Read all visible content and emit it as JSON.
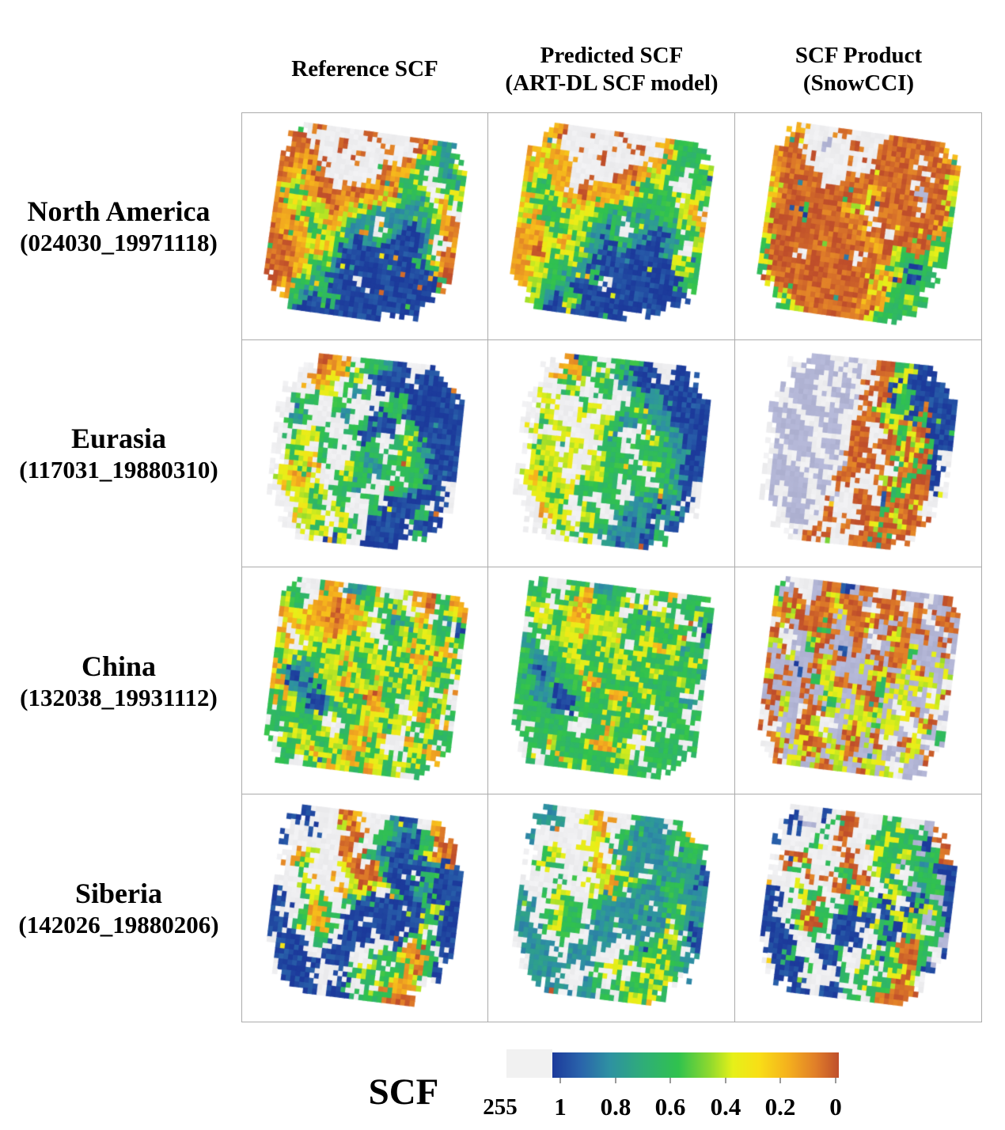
{
  "columns": [
    {
      "line1": "Reference SCF",
      "line2": ""
    },
    {
      "line1": "Predicted SCF",
      "line2": "(ART-DL SCF model)"
    },
    {
      "line1": "SCF Product",
      "line2": "(SnowCCI)"
    }
  ],
  "rows": [
    {
      "region": "North America",
      "scene": "(024030_19971118)"
    },
    {
      "region": "Eurasia",
      "scene": "(117031_19880310)"
    },
    {
      "region": "China",
      "scene": "(132038_19931112)"
    },
    {
      "region": "Siberia",
      "scene": "(142026_19880206)"
    }
  ],
  "legend": {
    "title": "SCF",
    "nodata_label": "255",
    "nodata_color": "#f1f1f1",
    "flag_color": "#b2b5d5",
    "tick_labels": [
      "1",
      "0.8",
      "0.6",
      "0.4",
      "0.2",
      "0"
    ],
    "colormap_stops": [
      [
        0.0,
        "#1c3a9b"
      ],
      [
        0.1,
        "#2a64ab"
      ],
      [
        0.2,
        "#2e91a2"
      ],
      [
        0.32,
        "#2fae77"
      ],
      [
        0.44,
        "#30c24e"
      ],
      [
        0.55,
        "#8fd92e"
      ],
      [
        0.63,
        "#e6f019"
      ],
      [
        0.72,
        "#f8df16"
      ],
      [
        0.82,
        "#f5b21d"
      ],
      [
        0.92,
        "#e07e29"
      ],
      [
        1.0,
        "#bf4e2b"
      ]
    ]
  },
  "chart_data": {
    "type": "heatmap",
    "title": "Snow cover fraction (SCF) map comparison: reference vs ART-DL model prediction vs SnowCCI product for four Landsat scenes",
    "legend_title": "SCF",
    "value_range": [
      0,
      1
    ],
    "value_codes": {
      "B": 0.97,
      "T": 0.78,
      "G": 0.6,
      "Y": 0.38,
      "O": 0.16,
      "R": 0.04,
      "W": "no-data (255, light gray)",
      "L": "flagged (lavender)",
      ".": "outside swath"
    },
    "panels": [
      {
        "region": "North America",
        "column": "Reference SCF",
        "rotation_deg": 8,
        "grid": [
          "..WRWWWWWRWWWWROGT..",
          ".RRWWWRWWWWRWWOYGTG.",
          ".RORWWWWRWWWWROGTTGY",
          "RROORWWWWWWROOYGWGTG",
          "ROORRWWWWWRROGGYWWGY",
          "ROYORRWRROOORYGGYWYG",
          "OYGOORROOROYYGTTGYOW",
          "OGYOYOROYYGTTTTTGYOR",
          "ROYGYYOYGTTWTTBTTGOR",
          "OOROGYOYTTGWGTBBTGWO",
          "ROOOYGYGTBTGTBBBTGWR",
          "RROOYOYGBBBBBBBBGYOR",
          "RRROGYGYBBBBBBBBBGOR",
          "RROOYGGTBBBBBBBBBBGR",
          "RRROYGTBBBWBBBBBBBB.",
          ".ROGGTGBBBBBBBBBBB..",
          "..OGTBBGBBBBBBBBB...",
          "...GBBBBBBBBB......."
        ]
      },
      {
        "region": "North America",
        "column": "Predicted SCF (ART-DL SCF model)",
        "rotation_deg": 8,
        "grid": [
          "..ORWWWWWRWWWWOOGG..",
          ".OOWWWRWWWWRWWOYGGG.",
          ".OYOWWWWRWWWWOOGGGGY",
          "OOYOOWWWWWWROYYGGWGG",
          "OYOOOWWWWWROOGYGWWGY",
          "OYGOOWWROOOOYYGGYWYG",
          "YGGYOOROOOYYGGGGGYOW",
          "OGYGYOOYGGGTTTGGGYYO",
          "YOGYGYYYGTTWGTTTTGGO",
          "YOOGGYYGTTGWGTBBTGWY",
          "OOOYGGYGTBTGTBBBTGWG",
          "OOOYYOYGTBBTBBBBGYYG",
          "OORYGYGYTBBBBBBBBGYG",
          "OOYOGGGTBBBBBBBBBBGG",
          "OOYYGGTBBGWBBBBBBBB.",
          ".OYGGTGBBBBBBBBBBB..",
          "..YGTBGGBBBBBBBBB...",
          "...GBBYBBBBBB......."
        ]
      },
      {
        "region": "North America",
        "column": "SCF Product (SnowCCI)",
        "rotation_deg": 8,
        "grid": [
          "..OWWWORWWWWRRRRRO..",
          ".ORWWLWWRWWRRRRRRRO.",
          ".RRWWWWWRWWRRRRWRRRO",
          "ORRRWWWWWWRRRRRRWRRY",
          "ORRRRWWWRRRRRRRWRRRY",
          "ORRRRRWRRRRORRRRLRRY",
          "YRRRRRRRROYRRRRRWRRG",
          "ORRRRRRROYRWRRRRRRRY",
          "YRRBGRRRRORWRRRRRROG",
          "YRRRRRRRRRORRWRRRRGG",
          "ORRRRRRRRRRORRRRORYG",
          "YRRRRRRRRRRRORYGGGYG",
          "GRRRWRRRRRWRRYGGBGG.",
          "YRRRRRRRRRRRYOYBBGG.",
          "GRRRRRRRRRRROYRGGG..",
          ".YRRRRRRRRRRYOGGYG..",
          "..GYRRRRRRROROGGG...",
          "...GYRRRRRRRYGG....."
        ]
      },
      {
        "region": "Eurasia",
        "column": "Reference SCF",
        "rotation_deg": 6,
        "grid": [
          "....ROOWWGGTBBWWB...",
          "..WWROOGYGBBBBWBBB..",
          "..WOOYWGGWBBBBBBBBB.",
          ".WWWGYWWTGWWGGBBBBBB",
          ".WGGWWGGWWWGGTBBBBBB",
          "WWGWWWGTWWBBGGBBBBBB",
          ".WTGWWWWGGBBBWGBBBBB",
          "WGWWYGWWGBBWWGYGBBBB",
          ".WYYWGGWWGGWGGGGTBBB",
          "WYGYWGWWGTTGWGYGGBBB",
          ".WYYOGWWYGTTGWGGTBBB",
          "WYOGYWWGYGGWGGWGGBBW",
          ".YOOYYWGGTGWWGGTBBBW",
          "WWYYGYWGWWGGWBBBBWBW",
          ".WWYYGWYGWWGBBBBGBB.",
          "..WOYYWYYGWBBBBWBB..",
          "..WWYGYWGGWBBBBBG...",
          "....WYWBYWBBBBB....."
        ]
      },
      {
        "region": "Eurasia",
        "column": "Predicted SCF (ART-DL SCF model)",
        "rotation_deg": 6,
        "grid": [
          "....OGGWWGGGBBWWB...",
          "..WWOOGGYGTBBBWBBB..",
          "..WOGYWGGWTTBBBBBBB.",
          ".WWWGYWWGGWWGTTBBBBB",
          ".WYYWWGYWWWGGTTTBBBB",
          "WWYWWWYYWWGTGGTTBBBB",
          ".WGYWWWWYYGTTWGTTBBB",
          "WYWWYYWWYGTWWGYGTTBB",
          ".WYYWYYWWGGWGGGGTTBB",
          "WYGYWYWWYGGGWGYGGTBB",
          ".WYYYYWWYGGGGWGGTTBB",
          "WYYGYWWYYGGWGGWGGTBW",
          ".YOYYYWGGGGWWGGTTTBW",
          "WWYYGYWGWWGGWTTBTWBW",
          ".WWYYGWYGWWGTTTBGTB.",
          "..WOYYWYYGWTBTBWTB..",
          "..WWYGYWGGWTTTTBG...",
          "....WYWGYWTTBTB....."
        ]
      },
      {
        "region": "Eurasia",
        "column": "SCF Product (SnowCCI)",
        "rotation_deg": 6,
        "grid": [
          "....LLWWLWWRRGYBB...",
          "..WLLLLWWLWRRYBBBB..",
          "..LLLWWLLWRRBYGBBBB.",
          ".LLLLWLLWWRWRBGBBBBB",
          ".WLLLWWLLWRRYGYBRBBB",
          "LLWWLLLLWWRRGYRBGBBB",
          ".LLLWWLLWRRWRYGYRBBB",
          "WLLLLWWLWRRWWRGRYGBB",
          ".WLLLWLLWRRWRRYRGRBW",
          "WLWLLWWLWRRRWRGYRGBW",
          ".LLWWLLWLRRWRWRRGRB.",
          "WLLLWWLWRRWWRYRGRRBW",
          ".WLLLWLWRWRWWRGYRRW.",
          "WLWLLWWLWWRRWBRRYRW.",
          ".LLWLLWRWWWRRGYRRW..",
          "..WLLWWRWRWRYRRYRR..",
          "..WWLWRWWRWRRGRRW...",
          "....WRWRWWRRRRR....."
        ]
      },
      {
        "region": "China",
        "column": "Reference SCF",
        "rotation_deg": 7,
        "grid": [
          ".GWWGOWTTGOWWYORWGO.",
          "GYGWOOROGGYGYWWOGGYO",
          "YGWOOROOYGWGTGYOWGTG",
          "OYYOORROOYYGGTGYGGWB",
          "WOYOOOROYYWGGYGGYGYG",
          "OWYYYOYYGYGWGYOYGYOW",
          "YOWYGYGYYGYGYGGOYGYG",
          "GYYGGYYOGGYYGGYYOGGY",
          "OGTTGYYGYGGYYGYGYYGW",
          "YTBTGGYOOYYOGYGYGWYO",
          "OYTTBGYYGGROGGYYGGYW",
          "GOYTBBTGYGYOYGWYOGWG",
          "GGYGTBGYGGYYGYYWGYOW",
          "WGGGGYWWGYOYGYYGWYGG",
          "GWGYGGYWGOYGOWWOYGWG",
          ".GYGYYGYYOOGYWGGYOO.",
          ".WGGYOYGYOGYYGWYGG..",
          "..GWYGYOYYGOYGYWG..."
        ]
      },
      {
        "region": "China",
        "column": "Predicted SCF (ART-DL SCF model)",
        "rotation_deg": 7,
        "grid": [
          ".GWWGGWTTGGWWYGOWGG.",
          "GGGWGYOGGGYGYWWGGGYG",
          "YGWGYOYGYGWGTGYGWGTG",
          "GYYGYOOYYYYGGTGGGGWB",
          "WGYGYYOYYYWGGYGGYGTG",
          "GWGYYYYGGYGWGYOYGTGW",
          "TGWGGYGGYGYGYGGGYGYG",
          "GTTGGYYGGGYYGGYGGGGT",
          "GTTTGGYGYGGYYGYGGYGW",
          "GTBTGGGOOYGGGYGGGWGG",
          "GGTTBGGYGGOOGGYGGGTW",
          "GGTTBBTGGGYGYGWGGGWG",
          "GGGGTBGGGGYYGGYWGGGW",
          "WGGGGGWWGGOGGYGGWGGG",
          "GWGGGGGWGOYGGWWGGGWG",
          ".GGGYGGGYOOGYWGGGGG.",
          ".WGGGOGGGGGYGGWGGG..",
          "..GWGGYGYGGGYGGWG..."
        ]
      },
      {
        "region": "China",
        "column": "SCF Product (SnowCCI)",
        "rotation_deg": 7,
        "grid": [
          ".LWWLRRBLRRWWRLLWLR.",
          "GLRWRRYRRLLRRWWRRLLR",
          "YRRLRROYRRWRRRLRWLRL",
          "ORYRRRRLRRYRLRRRLLWR",
          "WRLRRGRLYRWLRYRLRLRL",
          "RWLLYRRLLRLWLYRYLLRW",
          "YRWLGRLLBRLRLRRGLLYL",
          "LRYLLRYRLLYLRLYYRLLY",
          "RLLBLRYLLLLYYRYLYYLW",
          "YLRLLGYRRYLRGYLYLWYR",
          "RLLLRLYYLLRRGLYYLLYW",
          "LRYLRRLGYLYRYLWYRLWL",
          "RLYLWRRYLLYYGYYWLYRW",
          "WRLLRYWWLYRYLYYLWYLG",
          "RWLYRRYWLRYLRWWRYLWL",
          ".RYLYYRYYRRLYWLLYRR.",
          ".WRLYRYLYRLYYLWYLL..",
          "..RWYLYRYYLRYLYWL..."
        ]
      },
      {
        "region": "Siberia",
        "column": "Reference SCF",
        "rotation_deg": 7,
        "grid": [
          "..BWWWROWWWGTBWWO...",
          ".BWBWWYROWWGTTBGOR..",
          ".WWBWWWRRWGGTBBGWRR.",
          "BWWWWWRRWGTBBBTGYOR.",
          ".WOYWWWORWGTBBBBTBBB",
          "WOYGWWWYRROGBBWBGBBB",
          ".WGWOWOWYRRYGBBGTBBB",
          "WWWYWWWOYYGWTBBTGBBB",
          "BWWGYGWWGTBBBBWBGYBB",
          "BBWWYOGWGBBBBBBBGGBB",
          "BWWGOOGWBBWBBBBBYWBB",
          "BBWGYOGWBBBWBBWGYGBB",
          "BBBWWGWWBBBWWBGORGWB",
          "WBBBWWBBBWWGYGYOOGB.",
          ".BBBBWBBBWWYGWGYRGB.",
          ".WBBBBWWWGYGWGYOYW..",
          "..BBBWWWBGWGYGOOR...",
          "....BBWBBWGWGRRR...."
        ]
      },
      {
        "region": "Siberia",
        "column": "Predicted SCF (ART-DL SCF model)",
        "rotation_deg": 7,
        "grid": [
          "..TWWWYOWWWGTTWWG...",
          ".TWTWWYOOWWGTTTGGO..",
          ".WWTWWWYYWGTTTTGWGG.",
          "TWWWWWYYWGTTTTTGGGG.",
          ".WGYWWWYOWGTTTTTTTTB",
          "WGYGWWWYOYGTTWGTGTTB",
          ".WGWGWGWYYOYGTTGGTTT",
          "WWWGWWWYYOGWTTTTGTTT",
          "TWWGYGWWGTTTTTWTGYTT",
          "TTWWYGGWGTTTTTTTGGTT",
          "TWWGGGGWTTWTTTTTYWTB",
          "TTWGYGGWTTTWTTWGYGTB",
          "TTTWWGWWTTTWWTGGYGWT",
          "WTTTWWTTTWWGYGYYGGT.",
          ".TTTTWTTTWWYGWGYYGT.",
          ".WTTTTWWWGYGWGYGYW..",
          "..TTTWWWTGWGYGGYG...",
          "....TTWTTWGWGYYG...."
        ]
      },
      {
        "region": "Siberia",
        "column": "SCF Product (SnowCCI)",
        "rotation_deg": 7,
        "grid": [
          "..WWWBWRRWWWGGWWL...",
          ".BWLWWGRRWWGGYGGWR..",
          ".WBWWGWRWWGGYGGLBWR.",
          "BWWWGYWRRWGYGGYGGGR.",
          ".WRRWWGWRWWGGLGGTGBB",
          "WRRGWWWGRRWYGYWGGGLB",
          ".WGWRWRWGRRWGYGLTGGB",
          "WWWYWWWRRYGWWGYGBGLB",
          "BWWGYGWWGRYGBYWBGYGB",
          "BBWWYRGWGBYBWBYGGLGB",
          "BWWGRRGWBBWBYGBYYWGL",
          "BBWGYRGWBBBWGBWGYGGL",
          "BBBWWGWWBBBWWBGRRGWB",
          "WBBBWWBBGWWGYGYRRGL.",
          ".BBGBWBBBWWYGWGYRGB.",
          ".WBBBGWWWGYGWGYRYW..",
          "..BBBWWWBGWGYGRRR...",
          "....BBWBBWGWGRRR...."
        ]
      }
    ]
  }
}
